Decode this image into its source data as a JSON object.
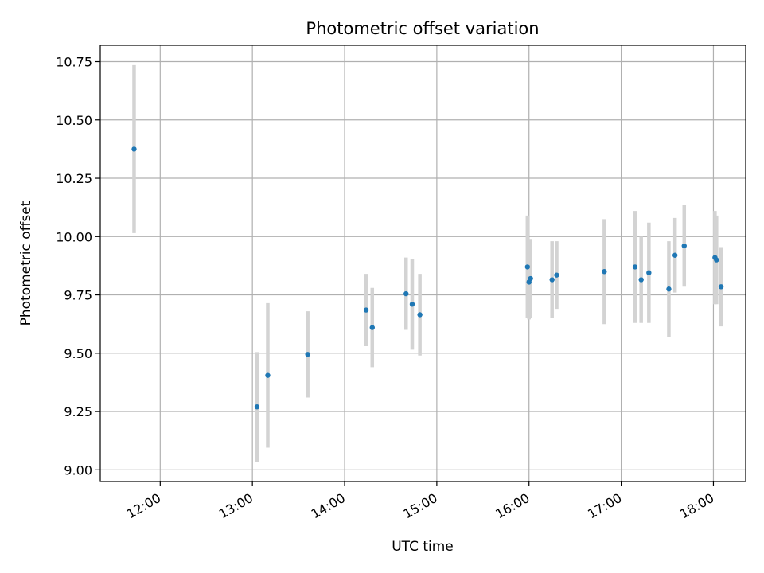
{
  "chart_data": {
    "type": "scatter",
    "title": "Photometric offset variation",
    "xlabel": "UTC time",
    "ylabel": "Photometric offset",
    "x_unit": "UTC time (hh:mm)",
    "xlim": [
      "11:21",
      "18:21"
    ],
    "ylim": [
      8.95,
      10.82
    ],
    "x_ticks": [
      "12:00",
      "13:00",
      "14:00",
      "15:00",
      "16:00",
      "17:00",
      "18:00"
    ],
    "y_ticks": [
      "9.00",
      "9.25",
      "9.50",
      "9.75",
      "10.00",
      "10.25",
      "10.50",
      "10.75"
    ],
    "grid": true,
    "point_color": "#1f77b4",
    "errorbar_color": "#d3d3d3",
    "points": [
      {
        "time": "11:43",
        "y": 10.375,
        "err": 0.36
      },
      {
        "time": "13:03",
        "y": 9.27,
        "err": 0.235
      },
      {
        "time": "13:10",
        "y": 9.405,
        "err": 0.31
      },
      {
        "time": "13:36",
        "y": 9.495,
        "err": 0.185
      },
      {
        "time": "14:14",
        "y": 9.685,
        "err": 0.155
      },
      {
        "time": "14:18",
        "y": 9.61,
        "err": 0.17
      },
      {
        "time": "14:40",
        "y": 9.755,
        "err": 0.155
      },
      {
        "time": "14:44",
        "y": 9.71,
        "err": 0.195
      },
      {
        "time": "14:49",
        "y": 9.665,
        "err": 0.175
      },
      {
        "time": "15:59",
        "y": 9.87,
        "err": 0.22
      },
      {
        "time": "16:00",
        "y": 9.805,
        "err": 0.16
      },
      {
        "time": "16:01",
        "y": 9.82,
        "err": 0.17
      },
      {
        "time": "16:15",
        "y": 9.815,
        "err": 0.165
      },
      {
        "time": "16:18",
        "y": 9.835,
        "err": 0.145
      },
      {
        "time": "16:49",
        "y": 9.85,
        "err": 0.225
      },
      {
        "time": "17:09",
        "y": 9.87,
        "err": 0.24
      },
      {
        "time": "17:13",
        "y": 9.815,
        "err": 0.185
      },
      {
        "time": "17:18",
        "y": 9.845,
        "err": 0.215
      },
      {
        "time": "17:31",
        "y": 9.775,
        "err": 0.205
      },
      {
        "time": "17:35",
        "y": 9.92,
        "err": 0.16
      },
      {
        "time": "17:41",
        "y": 9.96,
        "err": 0.175
      },
      {
        "time": "18:01",
        "y": 9.91,
        "err": 0.2
      },
      {
        "time": "18:02",
        "y": 9.9,
        "err": 0.19
      },
      {
        "time": "18:05",
        "y": 9.785,
        "err": 0.17
      }
    ]
  }
}
